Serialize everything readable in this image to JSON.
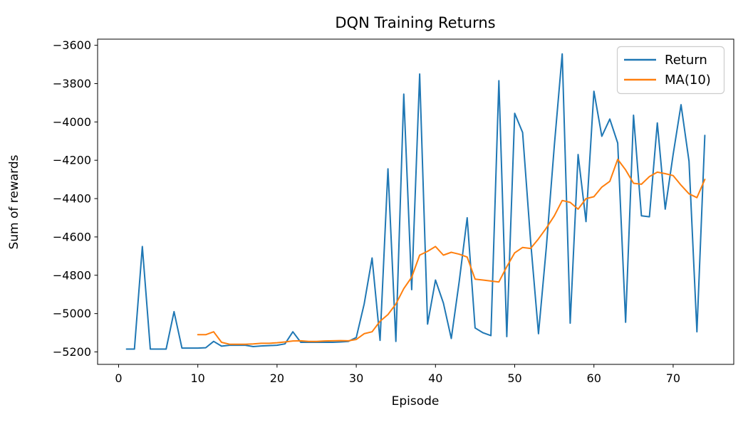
{
  "figure": {
    "title": "DQN Training Returns",
    "xlabel": "Episode",
    "ylabel": "Sum of rewards"
  },
  "legend": {
    "position": "upper right",
    "items": [
      {
        "label": "Return",
        "color": "#1f77b4"
      },
      {
        "label": "MA(10)",
        "color": "#ff7f0e"
      }
    ]
  },
  "chart_data": {
    "type": "line",
    "title": "DQN Training Returns",
    "xlabel": "Episode",
    "ylabel": "Sum of rewards",
    "xlim": [
      -2.65,
      77.65
    ],
    "ylim": [
      -5265,
      -3568
    ],
    "xticks": [
      0,
      10,
      20,
      30,
      40,
      50,
      60,
      70
    ],
    "yticks": [
      -3600,
      -3800,
      -4000,
      -4200,
      -4400,
      -4600,
      -4800,
      -5000,
      -5200
    ],
    "grid": false,
    "legend_position": "upper right",
    "series": [
      {
        "name": "Return",
        "color": "#1f77b4",
        "x": [
          1,
          2,
          3,
          4,
          5,
          6,
          7,
          8,
          9,
          10,
          11,
          12,
          13,
          14,
          15,
          16,
          17,
          18,
          19,
          20,
          21,
          22,
          23,
          24,
          25,
          26,
          27,
          28,
          29,
          30,
          31,
          32,
          33,
          34,
          35,
          36,
          37,
          38,
          39,
          40,
          41,
          42,
          43,
          44,
          45,
          46,
          47,
          48,
          49,
          50,
          51,
          52,
          53,
          54,
          55,
          56,
          57,
          58,
          59,
          60,
          61,
          62,
          63,
          64,
          65,
          66,
          67,
          68,
          69,
          70,
          71,
          72,
          73,
          74
        ],
        "y": [
          -5185,
          -5185,
          -4650,
          -5185,
          -5185,
          -5185,
          -4990,
          -5180,
          -5180,
          -5180,
          -5178,
          -5145,
          -5170,
          -5165,
          -5165,
          -5165,
          -5172,
          -5169,
          -5167,
          -5165,
          -5158,
          -5095,
          -5150,
          -5150,
          -5150,
          -5150,
          -5150,
          -5148,
          -5145,
          -5125,
          -4950,
          -4710,
          -5140,
          -4245,
          -5145,
          -3855,
          -4875,
          -3750,
          -5055,
          -4825,
          -4945,
          -5130,
          -4830,
          -4500,
          -5075,
          -5100,
          -5115,
          -3785,
          -5120,
          -3955,
          -4055,
          -4620,
          -5105,
          -4650,
          -4125,
          -3645,
          -5050,
          -4170,
          -4520,
          -3840,
          -4075,
          -3985,
          -4110,
          -5045,
          -3965,
          -4490,
          -4495,
          -4005,
          -4455,
          -4170,
          -3910,
          -4205,
          -5095,
          -4070
        ]
      },
      {
        "name": "MA(10)",
        "color": "#ff7f0e",
        "x": [
          10,
          11,
          12,
          13,
          14,
          15,
          16,
          17,
          18,
          19,
          20,
          21,
          22,
          23,
          24,
          25,
          26,
          27,
          28,
          29,
          30,
          31,
          32,
          33,
          34,
          35,
          36,
          37,
          38,
          39,
          40,
          41,
          42,
          43,
          44,
          45,
          46,
          47,
          48,
          49,
          50,
          51,
          52,
          53,
          54,
          55,
          56,
          57,
          58,
          59,
          60,
          61,
          62,
          63,
          64,
          65,
          66,
          67,
          68,
          69,
          70,
          71,
          72,
          73,
          74
        ],
        "y": [
          -5110,
          -5110,
          -5095,
          -5150,
          -5160,
          -5160,
          -5160,
          -5158,
          -5155,
          -5155,
          -5152,
          -5148,
          -5143,
          -5142,
          -5145,
          -5145,
          -5143,
          -5142,
          -5141,
          -5142,
          -5135,
          -5105,
          -5095,
          -5040,
          -5005,
          -4950,
          -4870,
          -4810,
          -4695,
          -4675,
          -4650,
          -4695,
          -4680,
          -4690,
          -4705,
          -4820,
          -4825,
          -4830,
          -4835,
          -4755,
          -4683,
          -4655,
          -4660,
          -4610,
          -4553,
          -4490,
          -4410,
          -4420,
          -4455,
          -4400,
          -4390,
          -4340,
          -4310,
          -4195,
          -4250,
          -4320,
          -4325,
          -4285,
          -4262,
          -4270,
          -4280,
          -4330,
          -4375,
          -4395,
          -4300
        ]
      }
    ]
  }
}
